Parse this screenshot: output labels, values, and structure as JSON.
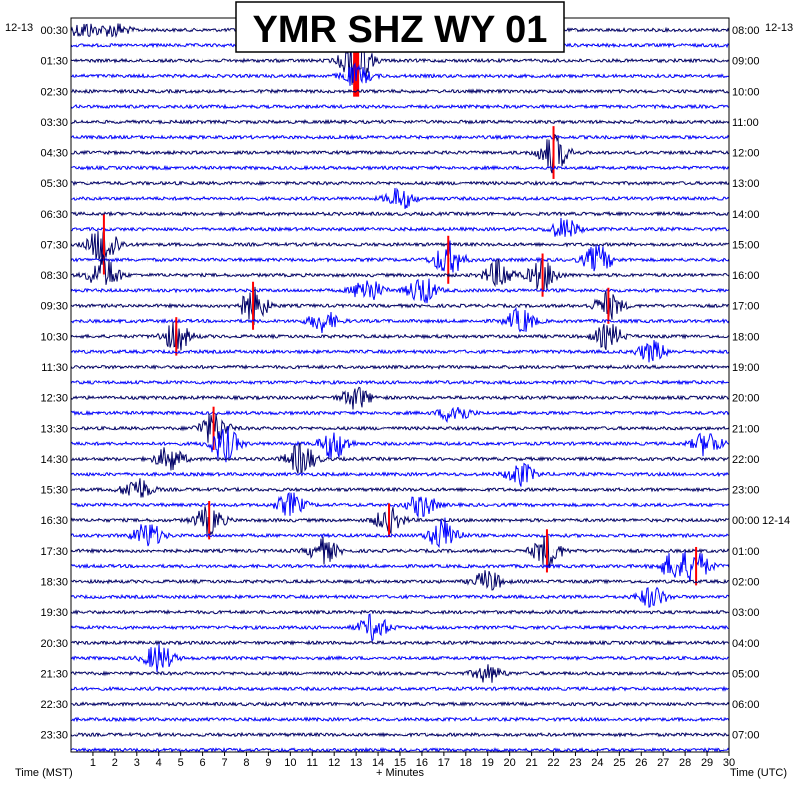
{
  "chart_data": {
    "type": "line",
    "title": "YMR SHZ WY 01",
    "left_date": "12-13",
    "right_date": "12-13",
    "right_date_change": "12-14",
    "xlabel": "+ Minutes",
    "left_axis_title": "Time (MST)",
    "right_axis_title": "Time (UTC)",
    "x_ticks": [
      "1",
      "2",
      "3",
      "4",
      "5",
      "6",
      "7",
      "8",
      "9",
      "10",
      "11",
      "12",
      "13",
      "14",
      "15",
      "16",
      "17",
      "18",
      "19",
      "20",
      "21",
      "22",
      "23",
      "24",
      "25",
      "26",
      "27",
      "28",
      "29",
      "30"
    ],
    "xlim": [
      0,
      30
    ],
    "left_ticks": [
      "00:30",
      "01:30",
      "02:30",
      "03:30",
      "04:30",
      "05:30",
      "06:30",
      "07:30",
      "08:30",
      "09:30",
      "10:30",
      "11:30",
      "12:30",
      "13:30",
      "14:30",
      "15:30",
      "16:30",
      "17:30",
      "18:30",
      "19:30",
      "20:30",
      "21:30",
      "22:30",
      "23:30"
    ],
    "right_ticks": [
      "08:00",
      "09:00",
      "10:00",
      "11:00",
      "12:00",
      "13:00",
      "14:00",
      "15:00",
      "16:00",
      "17:00",
      "18:00",
      "19:00",
      "20:00",
      "21:00",
      "22:00",
      "23:00",
      "00:00",
      "01:00",
      "02:00",
      "03:00",
      "04:00",
      "05:00",
      "06:00",
      "07:00"
    ],
    "trace_count": 48,
    "trace_colors": [
      "#000066",
      "#0000ff"
    ],
    "clip_color": "#ff0000",
    "events": [
      {
        "row": 0,
        "minute": 0.6,
        "amp": 0.9
      },
      {
        "row": 0,
        "minute": 2.0,
        "amp": 0.8
      },
      {
        "row": 2,
        "minute": 13.0,
        "amp": 3.0,
        "clipped": true
      },
      {
        "row": 3,
        "minute": 13.0,
        "amp": 1.2
      },
      {
        "row": 8,
        "minute": 22.0,
        "amp": 2.2,
        "clipped": true
      },
      {
        "row": 11,
        "minute": 15.0,
        "amp": 1.2
      },
      {
        "row": 13,
        "minute": 22.5,
        "amp": 1.2
      },
      {
        "row": 14,
        "minute": 1.5,
        "amp": 2.5,
        "clipped": true
      },
      {
        "row": 15,
        "minute": 17.2,
        "amp": 2.0,
        "clipped": true
      },
      {
        "row": 15,
        "minute": 24.0,
        "amp": 1.6
      },
      {
        "row": 16,
        "minute": 1.5,
        "amp": 2.2
      },
      {
        "row": 16,
        "minute": 21.5,
        "amp": 1.8,
        "clipped": true
      },
      {
        "row": 16,
        "minute": 19.5,
        "amp": 1.6
      },
      {
        "row": 17,
        "minute": 13.5,
        "amp": 1.5
      },
      {
        "row": 17,
        "minute": 16.0,
        "amp": 1.6
      },
      {
        "row": 18,
        "minute": 8.3,
        "amp": 2.0,
        "clipped": true
      },
      {
        "row": 18,
        "minute": 24.5,
        "amp": 1.5,
        "clipped": true
      },
      {
        "row": 19,
        "minute": 11.5,
        "amp": 1.2
      },
      {
        "row": 19,
        "minute": 20.5,
        "amp": 1.4
      },
      {
        "row": 20,
        "minute": 4.8,
        "amp": 1.6,
        "clipped": true
      },
      {
        "row": 20,
        "minute": 24.5,
        "amp": 1.4
      },
      {
        "row": 21,
        "minute": 26.5,
        "amp": 1.2
      },
      {
        "row": 24,
        "minute": 13.0,
        "amp": 1.3
      },
      {
        "row": 25,
        "minute": 17.5,
        "amp": 1.2
      },
      {
        "row": 26,
        "minute": 6.5,
        "amp": 1.8,
        "clipped": true
      },
      {
        "row": 27,
        "minute": 7.0,
        "amp": 2.0
      },
      {
        "row": 27,
        "minute": 12.0,
        "amp": 1.7
      },
      {
        "row": 27,
        "minute": 29.0,
        "amp": 1.4
      },
      {
        "row": 28,
        "minute": 4.5,
        "amp": 1.4
      },
      {
        "row": 28,
        "minute": 10.5,
        "amp": 1.8
      },
      {
        "row": 29,
        "minute": 20.5,
        "amp": 1.3
      },
      {
        "row": 30,
        "minute": 3.0,
        "amp": 1.4
      },
      {
        "row": 31,
        "minute": 10.0,
        "amp": 1.3
      },
      {
        "row": 31,
        "minute": 16.0,
        "amp": 1.3
      },
      {
        "row": 32,
        "minute": 6.3,
        "amp": 1.6,
        "clipped": true
      },
      {
        "row": 32,
        "minute": 14.5,
        "amp": 1.4,
        "clipped": true
      },
      {
        "row": 33,
        "minute": 3.5,
        "amp": 1.5
      },
      {
        "row": 33,
        "minute": 17.0,
        "amp": 2.0
      },
      {
        "row": 34,
        "minute": 11.5,
        "amp": 1.4
      },
      {
        "row": 34,
        "minute": 21.7,
        "amp": 1.8,
        "clipped": true
      },
      {
        "row": 35,
        "minute": 27.5,
        "amp": 1.5
      },
      {
        "row": 35,
        "minute": 28.5,
        "amp": 1.6,
        "clipped": true
      },
      {
        "row": 36,
        "minute": 19.0,
        "amp": 1.2
      },
      {
        "row": 37,
        "minute": 26.5,
        "amp": 1.2
      },
      {
        "row": 39,
        "minute": 13.8,
        "amp": 1.5
      },
      {
        "row": 41,
        "minute": 4.0,
        "amp": 1.6
      },
      {
        "row": 42,
        "minute": 19.0,
        "amp": 1.0
      }
    ]
  }
}
